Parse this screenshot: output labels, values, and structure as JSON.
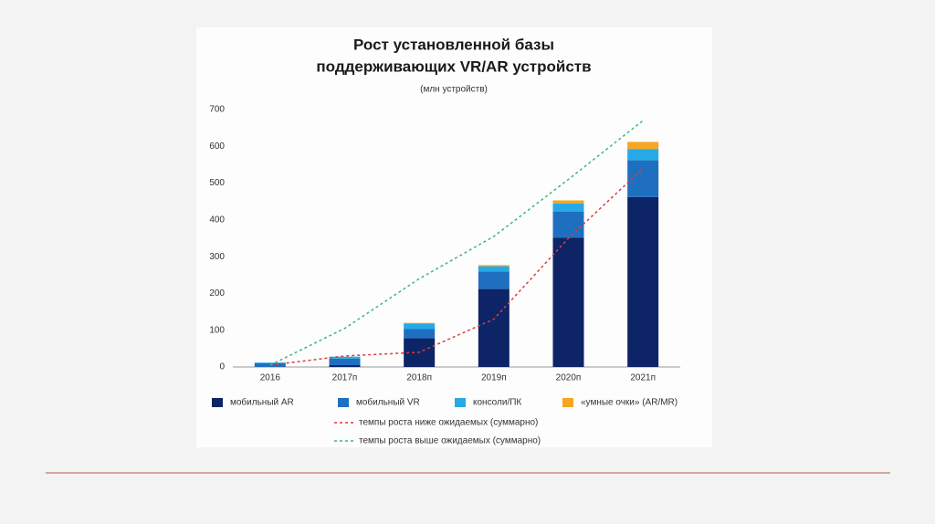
{
  "chart_data": {
    "type": "bar",
    "stacked": true,
    "title": [
      "Рост установленной базы",
      "поддерживающих VR/AR устройств"
    ],
    "subtitle": "(млн устройств)",
    "categories": [
      "2016",
      "2017п",
      "2018п",
      "2019п",
      "2020п",
      "2021п"
    ],
    "series": [
      {
        "name": "мобильный AR",
        "color": "#0d2466",
        "type": "bar",
        "values": [
          0,
          5,
          78,
          212,
          352,
          462
        ]
      },
      {
        "name": "мобильный VR",
        "color": "#1f6fc0",
        "type": "bar",
        "values": [
          10,
          18,
          25,
          48,
          70,
          100
        ]
      },
      {
        "name": "консоли/ПК",
        "color": "#27a9e8",
        "type": "bar",
        "values": [
          2,
          5,
          15,
          14,
          23,
          30
        ]
      },
      {
        "name": "«умные очки» (AR/MR)",
        "color": "#f5a623",
        "type": "bar",
        "values": [
          0,
          0,
          2,
          3,
          8,
          20
        ]
      },
      {
        "name": "темпы роста ниже ожидаемых (суммарно)",
        "color": "#e03a3a",
        "type": "line",
        "values": [
          5,
          30,
          40,
          130,
          350,
          540
        ]
      },
      {
        "name": "темпы роста выше ожидаемых (суммарно)",
        "color": "#3cb878",
        "type": "line",
        "values": [
          5,
          105,
          240,
          355,
          510,
          670
        ]
      }
    ],
    "ylim": [
      0,
      700
    ],
    "yticks": [
      0,
      100,
      200,
      300,
      400,
      500,
      600,
      700
    ],
    "grid": false
  }
}
